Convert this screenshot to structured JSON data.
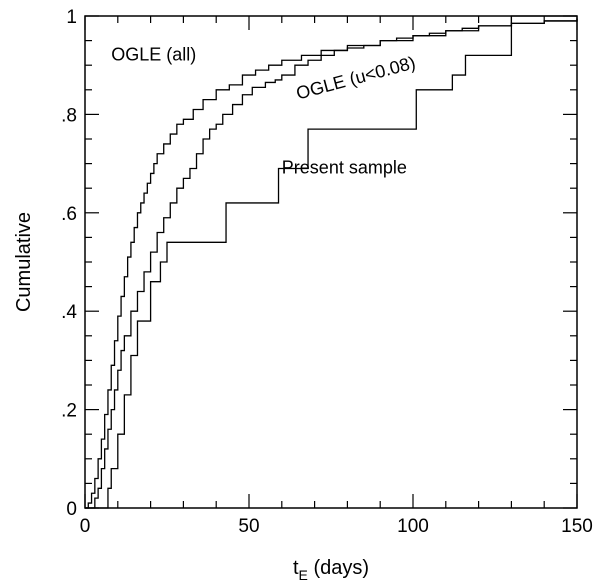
{
  "chart_data": {
    "type": "line",
    "step": true,
    "title": "",
    "xlabel": "t",
    "xlabel_sub": "E",
    "xlabel_suffix": " (days)",
    "ylabel": "Cumulative",
    "xlim": [
      0,
      150
    ],
    "ylim": [
      0,
      1
    ],
    "xticks": [
      0,
      50,
      100,
      150
    ],
    "xtick_labels": [
      "0",
      "50",
      "100",
      "150"
    ],
    "yticks": [
      0,
      0.2,
      0.4,
      0.6,
      0.8,
      1
    ],
    "ytick_labels": [
      "0",
      ".2",
      ".4",
      ".6",
      ".8",
      "1"
    ],
    "grid": false,
    "series": [
      {
        "name": "OGLE (all)",
        "x": [
          0,
          1,
          2,
          3,
          4,
          5,
          6,
          7,
          8,
          9,
          10,
          11,
          12,
          13,
          14,
          15,
          16,
          17,
          18,
          19,
          20,
          21,
          22,
          24,
          26,
          28,
          30,
          33,
          36,
          40,
          44,
          48,
          52,
          56,
          60,
          66,
          72,
          80,
          90,
          100,
          110,
          120,
          130,
          140,
          150
        ],
        "y": [
          0,
          0.01,
          0.03,
          0.06,
          0.1,
          0.14,
          0.19,
          0.24,
          0.29,
          0.34,
          0.39,
          0.43,
          0.47,
          0.51,
          0.54,
          0.57,
          0.6,
          0.62,
          0.64,
          0.66,
          0.68,
          0.7,
          0.72,
          0.74,
          0.76,
          0.78,
          0.79,
          0.81,
          0.83,
          0.85,
          0.86,
          0.88,
          0.89,
          0.9,
          0.91,
          0.92,
          0.93,
          0.94,
          0.95,
          0.96,
          0.97,
          0.98,
          0.985,
          0.99,
          0.995
        ]
      },
      {
        "name": "OGLE (u<0.08)",
        "x": [
          0,
          3,
          4,
          5,
          6,
          7,
          8,
          9,
          10,
          11,
          12,
          14,
          16,
          18,
          20,
          22,
          24,
          26,
          28,
          30,
          32,
          34,
          36,
          38,
          40,
          42,
          45,
          48,
          51,
          55,
          58,
          60,
          64,
          68,
          72,
          76,
          80,
          85,
          90,
          95,
          100,
          105,
          110,
          115,
          120,
          130,
          140,
          150
        ],
        "y": [
          0,
          0.02,
          0.04,
          0.08,
          0.12,
          0.16,
          0.2,
          0.24,
          0.28,
          0.32,
          0.35,
          0.4,
          0.44,
          0.48,
          0.52,
          0.56,
          0.59,
          0.62,
          0.65,
          0.67,
          0.69,
          0.72,
          0.75,
          0.77,
          0.78,
          0.8,
          0.82,
          0.84,
          0.855,
          0.865,
          0.87,
          0.88,
          0.9,
          0.91,
          0.92,
          0.93,
          0.935,
          0.94,
          0.95,
          0.955,
          0.96,
          0.965,
          0.97,
          0.975,
          0.98,
          0.985,
          0.99,
          0.995
        ]
      },
      {
        "name": "Present sample",
        "x": [
          0,
          7,
          8,
          10,
          12,
          14,
          16,
          20,
          23,
          25,
          26,
          43,
          59,
          68,
          80,
          101,
          105,
          112,
          116,
          123,
          130,
          150
        ],
        "y": [
          0,
          0.04,
          0.08,
          0.15,
          0.23,
          0.31,
          0.38,
          0.46,
          0.5,
          0.54,
          0.54,
          0.62,
          0.69,
          0.77,
          0.77,
          0.85,
          0.85,
          0.88,
          0.92,
          0.92,
          1.0,
          1.0
        ]
      }
    ],
    "annotations": [
      {
        "text": "OGLE (all)",
        "x": 8,
        "y": 0.91,
        "rotate": 0
      },
      {
        "text": "OGLE (u<0.08)",
        "x": 65,
        "y": 0.83,
        "rotate": -15
      },
      {
        "text": "Present sample",
        "x": 60,
        "y": 0.68,
        "rotate": 0
      }
    ]
  }
}
